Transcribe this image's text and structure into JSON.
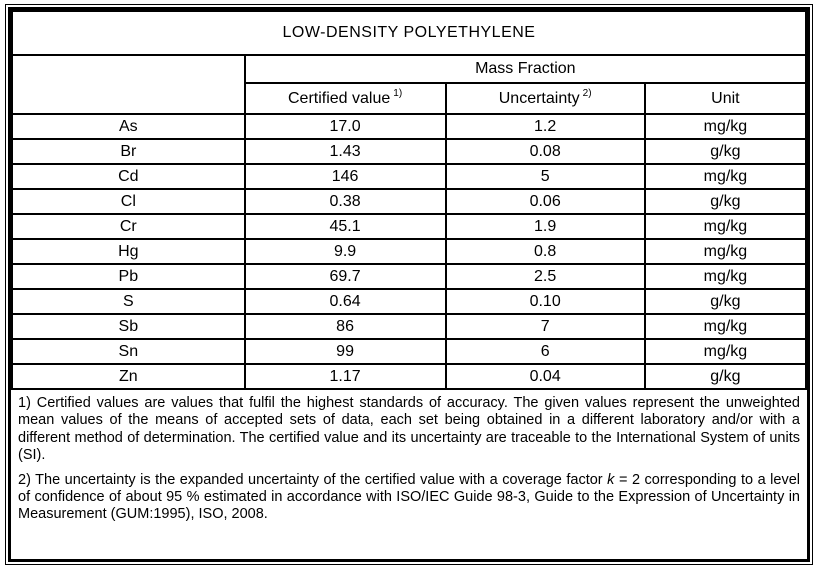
{
  "title": "LOW-DENSITY POLYETHYLENE",
  "table": {
    "group_header": "Mass Fraction",
    "columns": {
      "certified": "Certified value",
      "certified_sup": "1)",
      "uncertainty": "Uncertainty",
      "uncertainty_sup": "2)",
      "unit": "Unit"
    },
    "rows": [
      {
        "element": "As",
        "certified_value": "17.0",
        "uncertainty": "1.2",
        "unit": "mg/kg"
      },
      {
        "element": "Br",
        "certified_value": "1.43",
        "uncertainty": "0.08",
        "unit": "g/kg"
      },
      {
        "element": "Cd",
        "certified_value": "146",
        "uncertainty": "5",
        "unit": "mg/kg"
      },
      {
        "element": "Cl",
        "certified_value": "0.38",
        "uncertainty": "0.06",
        "unit": "g/kg"
      },
      {
        "element": "Cr",
        "certified_value": "45.1",
        "uncertainty": "1.9",
        "unit": "mg/kg"
      },
      {
        "element": "Hg",
        "certified_value": "9.9",
        "uncertainty": "0.8",
        "unit": "mg/kg"
      },
      {
        "element": "Pb",
        "certified_value": "69.7",
        "uncertainty": "2.5",
        "unit": "mg/kg"
      },
      {
        "element": "S",
        "certified_value": "0.64",
        "uncertainty": "0.10",
        "unit": "g/kg"
      },
      {
        "element": "Sb",
        "certified_value": "86",
        "uncertainty": "7",
        "unit": "mg/kg"
      },
      {
        "element": "Sn",
        "certified_value": "99",
        "uncertainty": "6",
        "unit": "mg/kg"
      },
      {
        "element": "Zn",
        "certified_value": "1.17",
        "uncertainty": "0.04",
        "unit": "g/kg"
      }
    ]
  },
  "footnotes": {
    "note1": "1) Certified values are values that fulfil the highest standards of accuracy. The given values represent the unweighted mean values of the means of accepted sets of data, each set being obtained in a different laboratory and/or with a different method of determination. The certified value and its uncertainty are traceable to the International System of units (SI).",
    "note2_part1": "2) The uncertainty is the expanded uncertainty of the certified value with a coverage factor ",
    "note2_k": "k",
    "note2_part2": " = 2 corresponding to a level of confidence of about 95 % estimated in accordance with ISO/IEC Guide 98-3, Guide to the Expression of Uncertainty in Measurement (GUM:1995), ISO, 2008."
  },
  "colors": {
    "border": "#000000",
    "text": "#000000",
    "background": "#ffffff"
  }
}
